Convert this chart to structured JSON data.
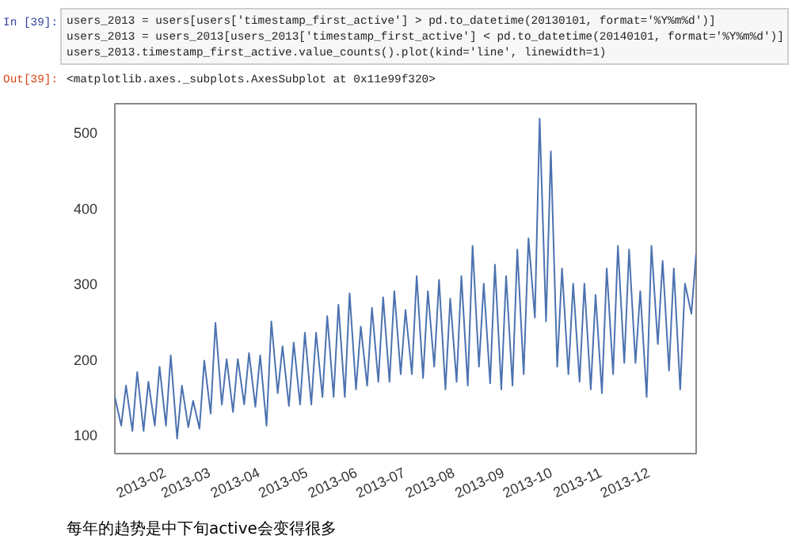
{
  "chart_data": {
    "type": "line",
    "annotations": [
      "In [39]:",
      "users_2013 = users[users['timestamp_first_active'] > pd.to_datetime(20130101, format='%Y%m%d')]",
      "users_2013 = users_2013[users_2013['timestamp_first_active'] < pd.to_datetime(20140101, format='%Y%m%d')]",
      "users_2013.timestamp_first_active.value_counts().plot(kind='line', linewidth=1)",
      "Out[39]:",
      "<matplotlib.axes._subplots.AxesSubplot at 0x11e99f320>",
      "每年的趋势是中下旬active会变得很多"
    ],
    "x": [
      "2013-01-01",
      "2013-01-05",
      "2013-01-08",
      "2013-01-12",
      "2013-01-15",
      "2013-01-19",
      "2013-01-22",
      "2013-01-26",
      "2013-01-29",
      "2013-02-02",
      "2013-02-05",
      "2013-02-09",
      "2013-02-12",
      "2013-02-16",
      "2013-02-19",
      "2013-02-23",
      "2013-02-26",
      "2013-03-02",
      "2013-03-05",
      "2013-03-09",
      "2013-03-12",
      "2013-03-16",
      "2013-03-19",
      "2013-03-23",
      "2013-03-26",
      "2013-03-30",
      "2013-04-02",
      "2013-04-06",
      "2013-04-09",
      "2013-04-13",
      "2013-04-16",
      "2013-04-20",
      "2013-04-23",
      "2013-04-27",
      "2013-04-30",
      "2013-05-04",
      "2013-05-07",
      "2013-05-11",
      "2013-05-14",
      "2013-05-18",
      "2013-05-21",
      "2013-05-25",
      "2013-05-28",
      "2013-06-01",
      "2013-06-04",
      "2013-06-08",
      "2013-06-11",
      "2013-06-15",
      "2013-06-18",
      "2013-06-22",
      "2013-06-25",
      "2013-06-29",
      "2013-07-02",
      "2013-07-06",
      "2013-07-09",
      "2013-07-13",
      "2013-07-16",
      "2013-07-20",
      "2013-07-23",
      "2013-07-27",
      "2013-07-30",
      "2013-08-03",
      "2013-08-06",
      "2013-08-10",
      "2013-08-13",
      "2013-08-17",
      "2013-08-20",
      "2013-08-24",
      "2013-08-27",
      "2013-08-31",
      "2013-09-03",
      "2013-09-07",
      "2013-09-10",
      "2013-09-14",
      "2013-09-17",
      "2013-09-21",
      "2013-09-24",
      "2013-09-28",
      "2013-10-01",
      "2013-10-05",
      "2013-10-08",
      "2013-10-12",
      "2013-10-15",
      "2013-10-19",
      "2013-10-22",
      "2013-10-26",
      "2013-10-29",
      "2013-11-02",
      "2013-11-05",
      "2013-11-09",
      "2013-11-12",
      "2013-11-16",
      "2013-11-19",
      "2013-11-23",
      "2013-11-26",
      "2013-11-30",
      "2013-12-03",
      "2013-12-07",
      "2013-12-10",
      "2013-12-14",
      "2013-12-17",
      "2013-12-21",
      "2013-12-24",
      "2013-12-28",
      "2013-12-31"
    ],
    "series": [
      {
        "color": "#4c72b0",
        "values": [
          150,
          112,
          165,
          105,
          183,
          105,
          170,
          112,
          190,
          112,
          205,
          95,
          165,
          110,
          145,
          108,
          198,
          128,
          248,
          140,
          200,
          130,
          200,
          140,
          208,
          137,
          205,
          112,
          250,
          155,
          217,
          138,
          222,
          140,
          235,
          140,
          235,
          150,
          257,
          150,
          272,
          150,
          287,
          160,
          243,
          165,
          268,
          170,
          282,
          170,
          290,
          180,
          265,
          180,
          310,
          175,
          290,
          190,
          305,
          160,
          280,
          170,
          310,
          165,
          350,
          190,
          300,
          168,
          325,
          160,
          310,
          165,
          345,
          180,
          360,
          255,
          518,
          250,
          475,
          190,
          320,
          180,
          300,
          170,
          300,
          160,
          285,
          155,
          320,
          180,
          350,
          195,
          345,
          195,
          290,
          150,
          350,
          220,
          330,
          185,
          320,
          160,
          300,
          260,
          340
        ]
      }
    ],
    "xlim": [
      "2013-01-01",
      "2013-12-31"
    ],
    "xticks": [
      {
        "value": "2013-02-01",
        "label": "2013-02"
      },
      {
        "value": "2013-03-01",
        "label": "2013-03"
      },
      {
        "value": "2013-04-01",
        "label": "2013-04"
      },
      {
        "value": "2013-05-01",
        "label": "2013-05"
      },
      {
        "value": "2013-06-01",
        "label": "2013-06"
      },
      {
        "value": "2013-07-01",
        "label": "2013-07"
      },
      {
        "value": "2013-08-01",
        "label": "2013-08"
      },
      {
        "value": "2013-09-01",
        "label": "2013-09"
      },
      {
        "value": "2013-10-01",
        "label": "2013-10"
      },
      {
        "value": "2013-11-01",
        "label": "2013-11"
      },
      {
        "value": "2013-12-01",
        "label": "2013-12"
      }
    ],
    "ylim": [
      75,
      538
    ],
    "yticks": [
      100,
      200,
      300,
      400,
      500
    ],
    "line_style": "solid"
  }
}
